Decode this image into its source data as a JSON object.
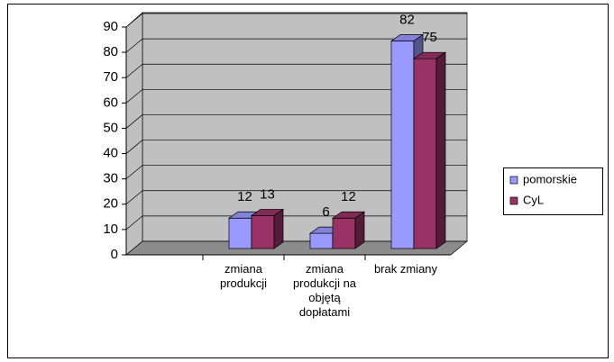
{
  "chart_data": {
    "type": "bar3d",
    "categories": [
      null,
      "zmiana produkcji",
      "zmiana produkcji na objętą dopłatami",
      "brak zmiany"
    ],
    "series": [
      {
        "name": "pomorskie",
        "color": "#9999ff",
        "values": [
          null,
          12,
          6,
          82
        ]
      },
      {
        "name": "CyL",
        "color": "#993366",
        "values": [
          null,
          13,
          12,
          75
        ]
      }
    ],
    "ylim": [
      0,
      90
    ],
    "yticks": [
      0,
      10,
      20,
      30,
      40,
      50,
      60,
      70,
      80,
      90
    ],
    "grid": true,
    "legend": "right"
  }
}
